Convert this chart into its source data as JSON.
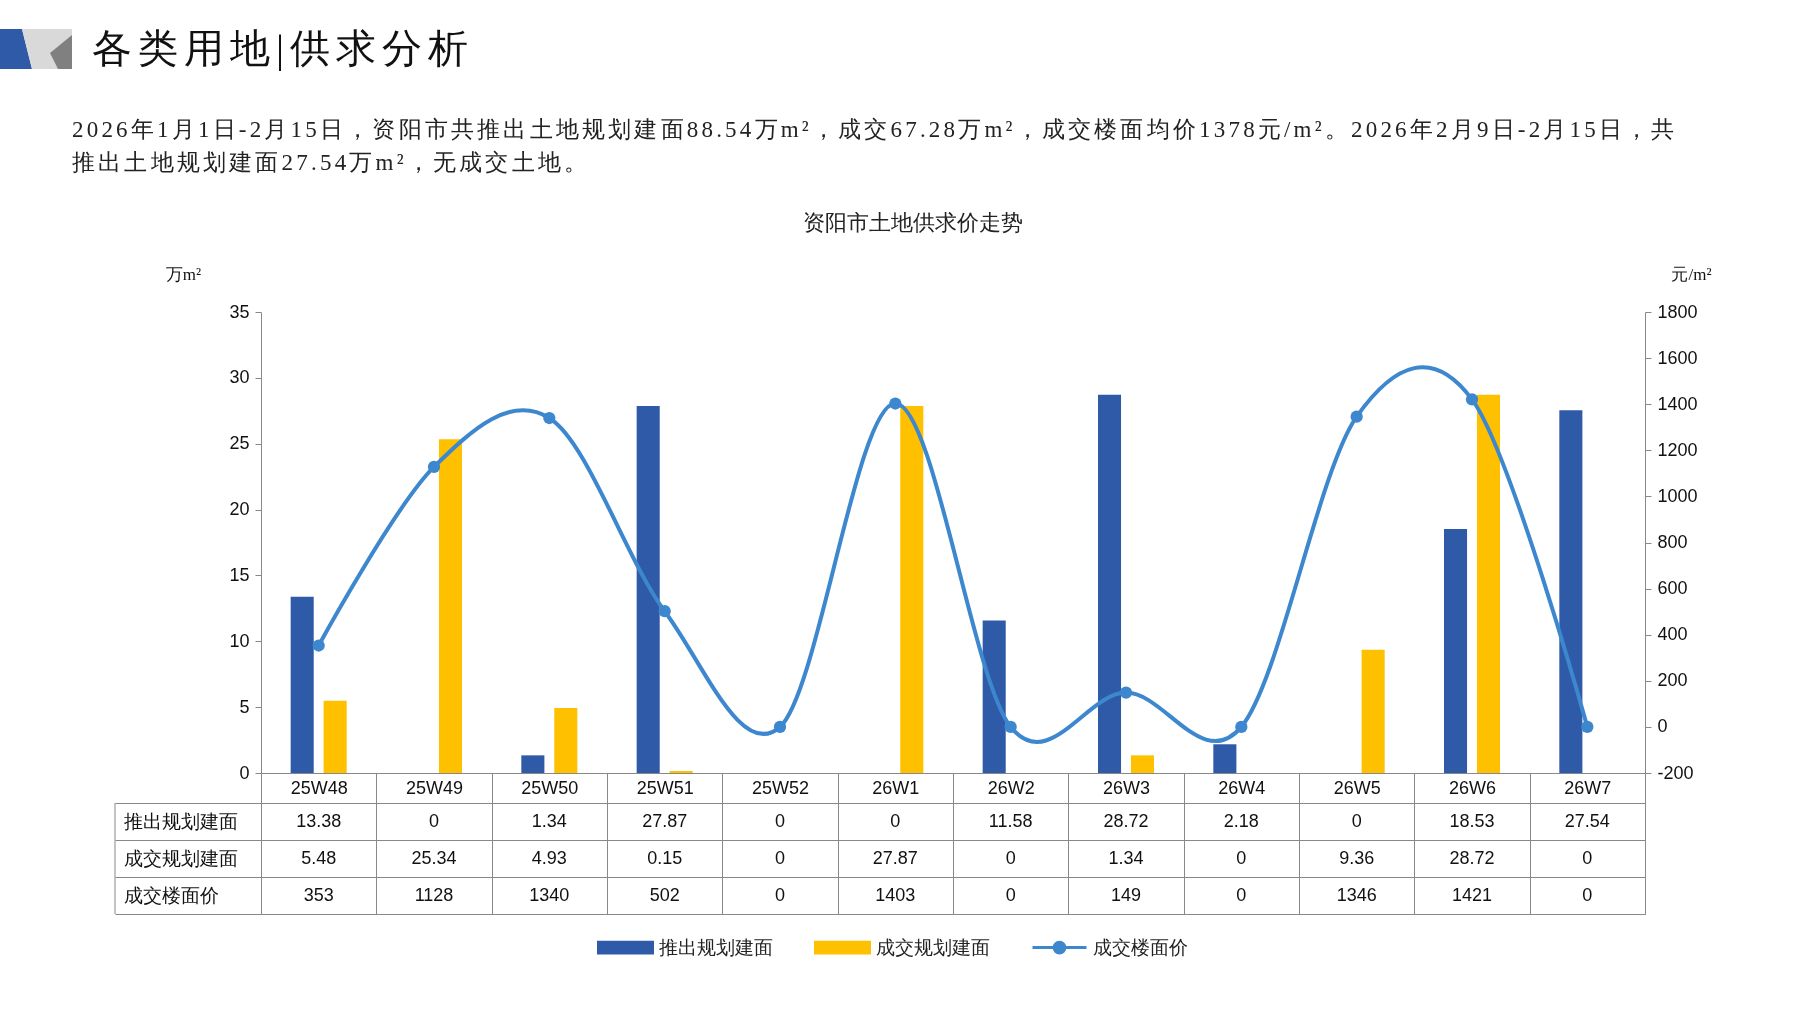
{
  "chart_data": {
    "type": "bar",
    "title": "资阳市土地供求价走势",
    "ylabel": "万m²",
    "y2label": "元/m²",
    "annotations": [
      "各类用地|供求分析",
      "2026年1月1日-2月15日，资阳市共推出土地规划建面88.54万m²，成交67.28万m²，成交楼面均价1378元/m²。2026年2月9日-2月15日，共推出土地规划建面27.54万m²，无成交土地。"
    ],
    "categories": [
      "25W48",
      "25W49",
      "25W50",
      "25W51",
      "25W52",
      "26W1",
      "26W2",
      "26W3",
      "26W4",
      "26W5",
      "26W6",
      "26W7"
    ],
    "series": [
      {
        "name": "推出规划建面",
        "color": "#2f5aa8",
        "values": [
          13.38,
          0,
          1.34,
          27.87,
          0,
          0,
          11.58,
          28.72,
          2.18,
          0,
          18.53,
          27.54
        ]
      },
      {
        "name": "成交规划建面",
        "color": "#ffc000",
        "values": [
          5.48,
          25.34,
          4.93,
          0.15,
          0,
          27.87,
          0,
          1.34,
          0,
          9.36,
          28.72,
          0
        ]
      },
      {
        "name": "成交楼面价",
        "type": "line",
        "axis": "y2",
        "color": "#3d87cf",
        "values": [
          353,
          1128,
          1340,
          502,
          0,
          1403,
          0,
          149,
          0,
          1346,
          1421,
          0
        ]
      }
    ],
    "ylim": [
      0,
      35
    ],
    "yticks": [
      0,
      5,
      10,
      15,
      20,
      25,
      30,
      35
    ],
    "y2lim": [
      -200,
      1800
    ],
    "y2ticks": [
      -200,
      0,
      200,
      400,
      600,
      800,
      1000,
      1200,
      1400,
      1600,
      1800
    ],
    "grid": false,
    "legend": "bottom",
    "marker": "circle",
    "data_labels": true
  }
}
